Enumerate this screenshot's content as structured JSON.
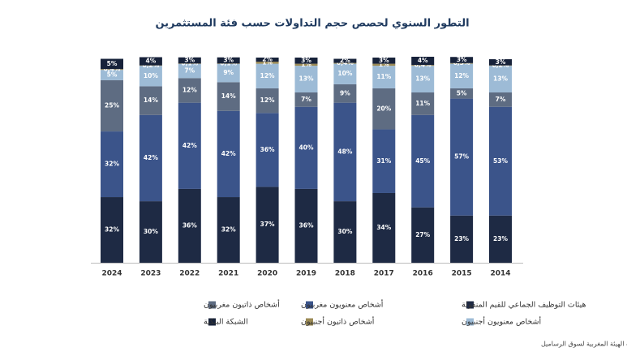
{
  "chart_data": {
    "type": "stacked_bar",
    "title": "التطور السنوي لحصص حجم التداولات حسب فئة المستثمرين",
    "source": "المصدر: شركات البورصة وحسابات الهيئة المغربية لسوق الرساميل",
    "categories": [
      "2024",
      "2023",
      "2022",
      "2021",
      "2020",
      "2019",
      "2018",
      "2017",
      "2016",
      "2015",
      "2014"
    ],
    "series": [
      {
        "name": "هيئات التوظيف الجماعي للقيم المنقولة",
        "color": "#1e2a44",
        "values": [
          32,
          30,
          36,
          32,
          37,
          36,
          30,
          34,
          27,
          23,
          23
        ],
        "value_labels": [
          "32%",
          "30%",
          "36%",
          "32%",
          "37%",
          "36%",
          "30%",
          "34%",
          "27%",
          "23%",
          "23%"
        ]
      },
      {
        "name": "أشخاص معنويون مغربيون",
        "color": "#3b548a",
        "values": [
          32,
          42,
          42,
          42,
          36,
          40,
          48,
          31,
          45,
          57,
          53
        ],
        "value_labels": [
          "32%",
          "42%",
          "42%",
          "42%",
          "36%",
          "40%",
          "48%",
          "31%",
          "45%",
          "57%",
          "53%"
        ]
      },
      {
        "name": "أشخاص ذاتيون مغربيون",
        "color": "#5e6c82",
        "values": [
          25,
          14,
          12,
          14,
          12,
          7,
          9,
          20,
          11,
          5,
          7
        ],
        "value_labels": [
          "25%",
          "14%",
          "12%",
          "14%",
          "12%",
          "7%",
          "9%",
          "20%",
          "11%",
          "5%",
          "7%"
        ]
      },
      {
        "name": "أشخاص معنويون أجنبيون",
        "color": "#9dbbd6",
        "values": [
          5,
          10,
          7,
          9,
          12,
          13,
          10,
          11,
          13,
          12,
          13
        ],
        "value_labels": [
          "5%",
          "10%",
          "7%",
          "9%",
          "12%",
          "13%",
          "10%",
          "11%",
          "13%",
          "12%",
          "13%"
        ]
      },
      {
        "name": "أشخاص ذاتيون أجنبيون",
        "color": "#9b8a55",
        "values": [
          0.4,
          0.2,
          0.1,
          0.1,
          1,
          1,
          0.4,
          1,
          0.4,
          0.3,
          0.2
        ],
        "value_labels": [
          "0,4%",
          "0,2%",
          "0,1%",
          "0,1%",
          "1%",
          "1%",
          "0,4%",
          "1%",
          "0,4%",
          "0,3%",
          "0,2%"
        ]
      },
      {
        "name": "الشبكة البنكية",
        "color": "#17223a",
        "values": [
          5,
          4,
          3,
          3,
          2,
          3,
          2,
          3,
          4,
          3,
          3
        ],
        "value_labels": [
          "5%",
          "4%",
          "3%",
          "3%",
          "2%",
          "3%",
          "2%",
          "3%",
          "4%",
          "3%",
          "3%"
        ]
      }
    ],
    "ylim": [
      0,
      100
    ]
  }
}
